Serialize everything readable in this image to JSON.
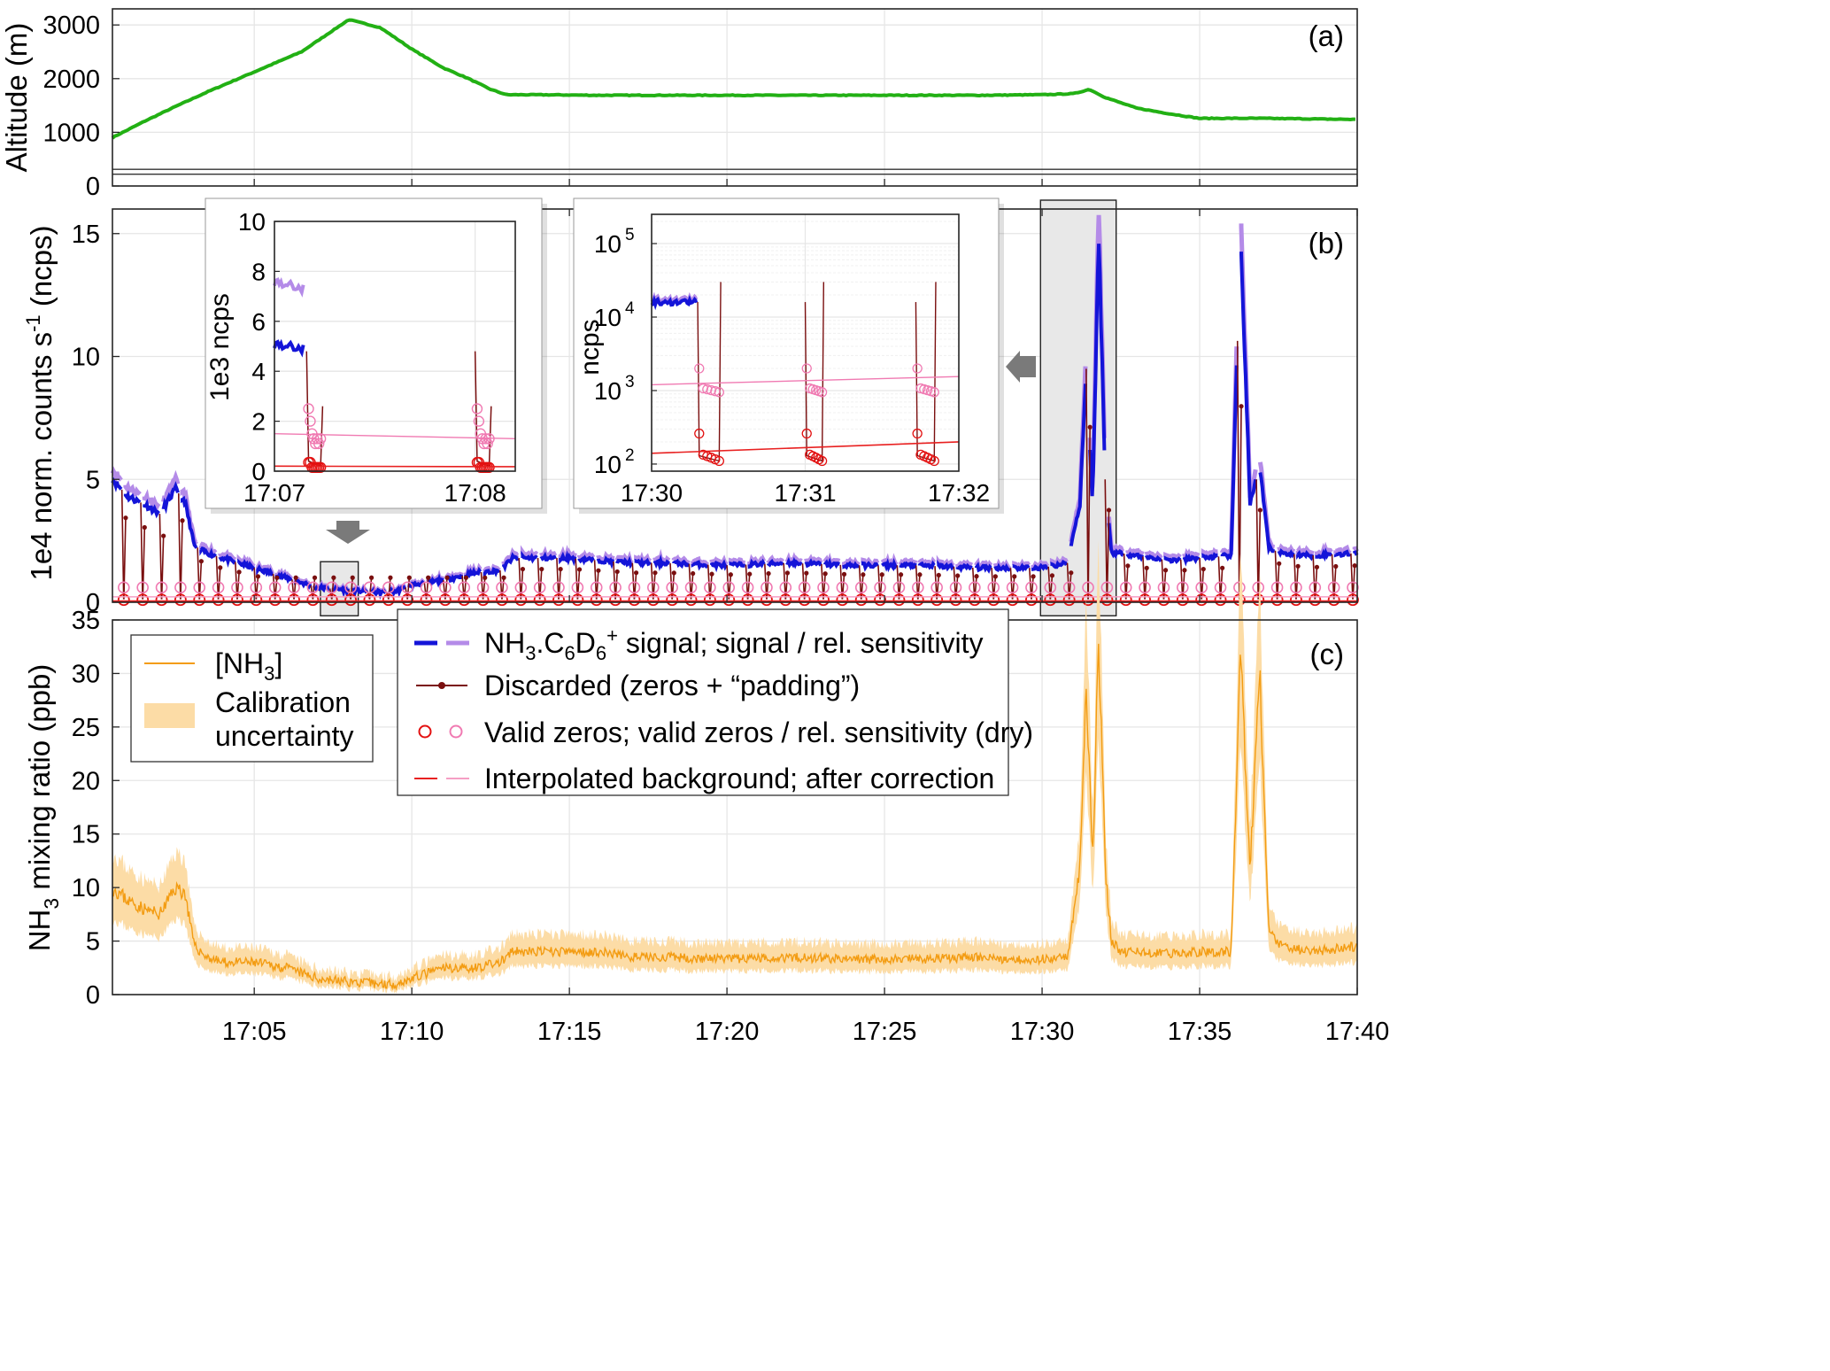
{
  "chart_data": [
    {
      "id": "a",
      "panel_label": "(a)",
      "type": "line",
      "ylabel": "Altitude (m)",
      "ylim": [
        0,
        3300
      ],
      "yticks": [
        "0",
        "1000",
        "2000",
        "3000"
      ],
      "xlim_min": [
        0.5,
        40
      ],
      "grid": true,
      "color": "#22b014",
      "series": [
        {
          "x": [
            0.5,
            1.5,
            2.5,
            3.5,
            4.5,
            5.5,
            6.5,
            7.5,
            8.0,
            9.0,
            10.0,
            11.0,
            11.8,
            12.5,
            13.0,
            14.0,
            16.0,
            20.0,
            25.0,
            28.0,
            30.0,
            31.0,
            31.5,
            32.0,
            33.0,
            34.0,
            35.0,
            37.0,
            40.0
          ],
          "y": [
            900,
            1200,
            1480,
            1750,
            2000,
            2250,
            2500,
            2900,
            3100,
            2950,
            2550,
            2200,
            2000,
            1800,
            1700,
            1700,
            1690,
            1690,
            1690,
            1690,
            1700,
            1720,
            1800,
            1650,
            1450,
            1350,
            1260,
            1260,
            1240
          ]
        }
      ]
    },
    {
      "id": "b",
      "panel_label": "(b)",
      "type": "line",
      "ylabel": "1e4 norm. counts s",
      "ylabel_sup": "-1",
      "ylabel_unit": "(ncps)",
      "ylim": [
        0,
        16
      ],
      "yticks": [
        "0",
        "5",
        "10",
        "15"
      ],
      "grid": true,
      "signal_color": "#1414d8",
      "relsens_color": "#b48be8",
      "discarded_color": "#7a0f0f",
      "zero_color": "#e31010",
      "zero_relsens_color": "#f07ab2",
      "background_color": "#e82020",
      "background_corr_color": "#f59fc4",
      "zeros_every_min": 0.6,
      "signal_points": {
        "x": [
          0.5,
          1.0,
          1.5,
          2.0,
          2.5,
          2.8,
          3.1,
          3.5,
          4.0,
          5.0,
          6.0,
          7.0,
          8.0,
          9.0,
          9.5,
          10.0,
          11.0,
          12.0,
          12.8,
          13.2,
          14.0,
          15.0,
          16.0,
          17.0,
          18.0,
          20.0,
          22.0,
          24.0,
          26.0,
          28.0,
          29.0,
          30.0,
          30.8,
          31.2,
          31.4,
          31.6,
          31.8,
          32.0,
          32.2,
          32.5,
          33.0,
          34.0,
          35.0,
          36.0,
          36.3,
          36.6,
          36.9,
          37.2,
          37.6,
          38.5,
          40.0
        ],
        "y": [
          5.0,
          4.3,
          4.0,
          3.6,
          4.6,
          4.1,
          2.3,
          2.0,
          1.8,
          1.4,
          1.0,
          0.6,
          0.5,
          0.4,
          0.45,
          0.7,
          0.9,
          1.2,
          1.3,
          1.8,
          1.8,
          1.8,
          1.7,
          1.6,
          1.6,
          1.5,
          1.6,
          1.5,
          1.5,
          1.4,
          1.4,
          1.4,
          1.6,
          4.0,
          9.5,
          4.0,
          15.0,
          5.0,
          2.0,
          2.0,
          1.9,
          1.7,
          1.8,
          1.9,
          15.0,
          4.0,
          5.5,
          2.2,
          2.0,
          1.9,
          2.0
        ]
      },
      "highlights": [
        [
          7.1,
          8.3
        ],
        [
          29.95,
          32.35
        ]
      ]
    },
    {
      "id": "c",
      "panel_label": "(c)",
      "type": "area",
      "ylabel": "NH",
      "ylabel_sub": "3",
      "ylabel_rest": " mixing ratio (ppb)",
      "ylim": [
        0,
        35
      ],
      "yticks": [
        "0",
        "5",
        "10",
        "15",
        "20",
        "25",
        "30",
        "35"
      ],
      "xticks": [
        "17:05",
        "17:10",
        "17:15",
        "17:20",
        "17:25",
        "17:30",
        "17:35",
        "17:40"
      ],
      "xtick_min": [
        5,
        10,
        15,
        20,
        25,
        30,
        35,
        40
      ],
      "grid": true,
      "line_color": "#f39c12",
      "band_color": "#fcdca6",
      "series": [
        {
          "name": "[NH3]",
          "x": [
            0.5,
            1.0,
            1.5,
            2.0,
            2.5,
            2.8,
            3.1,
            3.5,
            4.0,
            5.0,
            6.0,
            7.0,
            8.0,
            9.0,
            9.5,
            10.0,
            11.0,
            12.0,
            12.8,
            13.2,
            14.0,
            15.0,
            16.0,
            17.0,
            18.0,
            20.0,
            22.0,
            24.0,
            26.0,
            28.0,
            29.0,
            30.0,
            30.8,
            31.2,
            31.4,
            31.6,
            31.8,
            32.0,
            32.2,
            32.5,
            33.0,
            34.0,
            35.0,
            36.0,
            36.3,
            36.6,
            36.9,
            37.2,
            37.6,
            38.5,
            40.0
          ],
          "y": [
            10.0,
            8.8,
            8.0,
            7.5,
            10.0,
            9.5,
            4.5,
            3.5,
            3.0,
            3.0,
            2.5,
            1.5,
            1.2,
            1.0,
            1.0,
            1.5,
            2.5,
            2.5,
            3.0,
            4.0,
            4.0,
            4.0,
            4.0,
            3.5,
            3.5,
            3.3,
            3.5,
            3.3,
            3.3,
            3.5,
            3.3,
            3.3,
            3.5,
            12.0,
            30.0,
            12.0,
            33.0,
            12.0,
            5.0,
            4.0,
            4.0,
            3.8,
            4.0,
            4.0,
            32.0,
            12.0,
            30.0,
            6.0,
            4.5,
            4.0,
            4.5
          ]
        }
      ]
    },
    {
      "id": "inset1",
      "type": "line",
      "ylabel": "1e3 ncps",
      "ylim": [
        0,
        10
      ],
      "yticks": [
        "0",
        "2",
        "4",
        "6",
        "8",
        "10"
      ],
      "xticks": [
        "17:07",
        "17:08"
      ],
      "signal": {
        "x": [
          0.0,
          0.15,
          0.25,
          0.45,
          0.6,
          0.8,
          1.0,
          1.1,
          1.2
        ],
        "y": [
          5.1,
          4.9,
          null,
          5.3,
          4.4,
          4.0,
          3.9,
          null,
          3.7
        ]
      },
      "relsens": {
        "x": [
          0.0,
          0.15,
          0.25,
          0.45,
          0.6,
          0.8,
          1.0,
          1.1,
          1.2
        ],
        "y": [
          7.6,
          7.3,
          null,
          8.0,
          6.2,
          5.8,
          5.6,
          null,
          5.5
        ]
      },
      "background": [
        0.2,
        0.18
      ],
      "background_corr": [
        1.5,
        1.3
      ]
    },
    {
      "id": "inset2",
      "type": "line",
      "ylabel": "ncps",
      "yscale": "log",
      "ylim": [
        80,
        250000
      ],
      "yticks": [
        "10",
        "10",
        "10",
        "10"
      ],
      "yticks_exp": [
        "2",
        "3",
        "4",
        "5"
      ],
      "xticks": [
        "17:30",
        "17:31",
        "17:32"
      ],
      "signal_x": [
        30.0,
        30.3,
        30.45,
        30.9,
        31.1,
        31.3,
        31.5,
        31.65,
        31.75,
        31.85,
        32.0
      ],
      "signal_y": [
        16000,
        16000,
        16000,
        16000,
        15000,
        30000,
        90000,
        50000,
        40000,
        140000,
        30000
      ],
      "background": [
        140,
        200
      ],
      "background_corr": [
        1200,
        1550
      ]
    }
  ],
  "legend_left": {
    "entries": [
      {
        "label": "[NH",
        "sub": "3",
        "tail": "]"
      },
      {
        "label": "Calibration"
      },
      {
        "label": "uncertainty"
      }
    ]
  },
  "legend_main": {
    "entries": [
      {
        "pre": "NH",
        "sub1": "3",
        "mid": ".C",
        "sub2": "6",
        "mid2": "D",
        "sub3": "6",
        "sup": "+",
        "post": " signal; signal / rel. sensitivity"
      },
      {
        "label": "Discarded (zeros + “padding”)"
      },
      {
        "label": "Valid zeros; valid zeros / rel. sensitivity (dry)"
      },
      {
        "label": "Interpolated background; after correction"
      }
    ]
  }
}
